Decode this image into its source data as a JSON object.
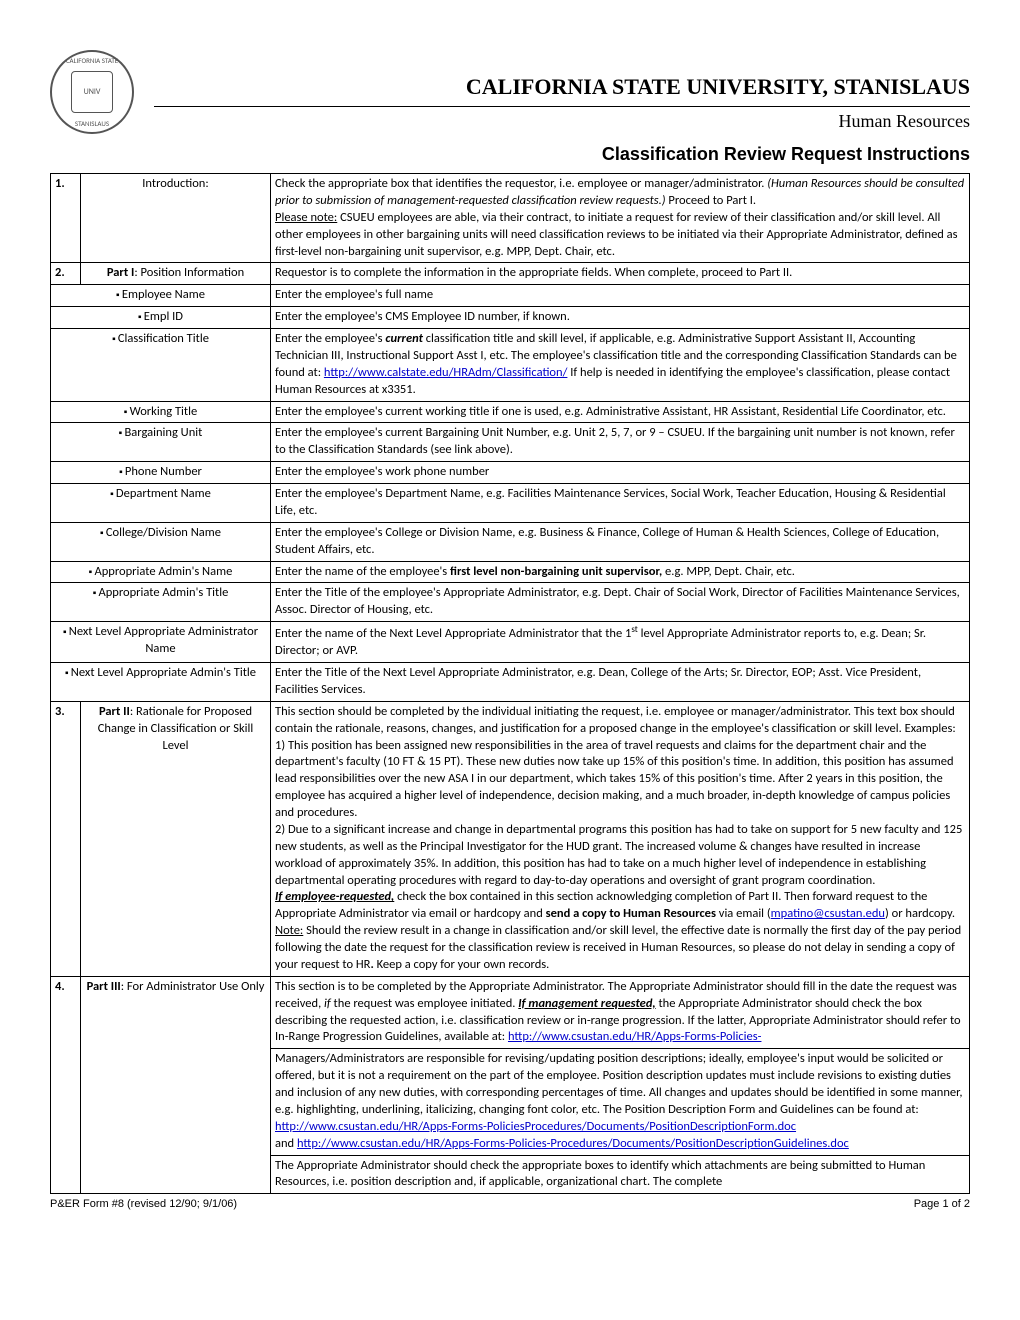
{
  "header": {
    "seal_top": "CALIFORNIA STATE",
    "seal_bottom": "STANISLAUS",
    "seal_inner": "UNIV",
    "university": "CALIFORNIA STATE UNIVERSITY, STANISLAUS",
    "department": "Human Resources",
    "doc_title": "Classification Review Request Instructions"
  },
  "rows": [
    {
      "num": "1.",
      "label": "Introduction:",
      "content": "Check the appropriate box that identifies the requestor, i.e. employee or manager/administrator.  <i>(Human Resources should be consulted prior to submission of management-requested classification review requests.)</i>  Proceed to Part I.<br><span class='und'>Please note:</span> CSUEU employees are able, via their contract, to initiate a request for review of their classification and/or skill level.   All other employees in other bargaining units will need classification reviews to be initiated via their Appropriate Administrator, defined as first-level non-bargaining unit supervisor, e.g. MPP, Dept. Chair, etc."
    },
    {
      "num": "2.",
      "label_html": "<b>Part I</b>: Position Information",
      "content": "Requestor is to complete the information in the appropriate fields.  When complete, proceed to Part II."
    },
    {
      "sub": true,
      "label": "Employee Name",
      "content": "Enter the employee's full name"
    },
    {
      "sub": true,
      "label": "Empl ID",
      "content": "Enter the employee's CMS Employee ID number, if known."
    },
    {
      "sub": true,
      "label": "Classification Title",
      "content": "Enter the employee's <b><i>current</i></b> classification title and skill level, if applicable, e.g. Administrative Support Assistant II, Accounting Technician III, Instructional Support Asst I, etc.  The employee's classification title and the corresponding Classification Standards can be found at: <a data-name='classification-link' data-interactable='true'>http://www.calstate.edu/HRAdm/Classification/</a>  If help is needed in identifying the employee's classification, please contact Human Resources at x3351."
    },
    {
      "sub": true,
      "label": "Working Title",
      "content": "Enter the employee's current working title if one is used, e.g. Administrative Assistant, HR Assistant, Residential Life Coordinator, etc."
    },
    {
      "sub": true,
      "label": "Bargaining Unit",
      "content": "Enter the employee's current Bargaining Unit Number, e.g. Unit 2, 5, 7, or 9 – CSUEU.  If the bargaining unit number is not known, refer to the Classification Standards (see link above)."
    },
    {
      "sub": true,
      "label": "Phone Number",
      "content": "Enter the employee's work phone number"
    },
    {
      "sub": true,
      "label": "Department Name",
      "content": "Enter the employee's Department Name, e.g. Facilities Maintenance Services, Social Work, Teacher Education, Housing & Residential Life, etc."
    },
    {
      "sub": true,
      "label": "College/Division Name",
      "content": "Enter the employee's College or Division Name, e.g. Business & Finance, College of Human & Health Sciences, College of Education, Student Affairs, etc."
    },
    {
      "sub": true,
      "label": "Appropriate Admin's Name",
      "content": "Enter the name of the employee's <b>first level non-bargaining unit supervisor,</b> e.g. MPP, Dept. Chair, etc."
    },
    {
      "sub": true,
      "label": "Appropriate Admin's Title",
      "content": "Enter the Title of the employee's Appropriate Administrator, e.g. Dept. Chair of Social Work, Director of Facilities Maintenance Services, Assoc. Director of Housing, etc."
    },
    {
      "sub": true,
      "label": "Next Level Appropriate Administrator Name",
      "content": "Enter the name of the Next Level Appropriate Administrator that the 1<sup>st</sup> level Appropriate Administrator reports to, e.g. Dean; Sr. Director; or AVP."
    },
    {
      "sub": true,
      "label": "Next Level Appropriate Admin's Title",
      "content": "Enter the Title of the Next Level Appropriate Administrator, e.g. Dean, College of the Arts; Sr. Director, EOP; Asst. Vice President, Facilities Services."
    },
    {
      "num": "3.",
      "label_html": "<b>Part II</b>: Rationale for Proposed Change in Classification or Skill Level",
      "content": "This section should be completed by the individual initiating the request, i.e. employee or manager/administrator.  This text box should contain the rationale, reasons, changes, and justification for a proposed change in the employee's classification or skill level.  Examples:<br>1)  This position has been assigned new responsibilities in the area of travel requests and claims for the department chair and the department's faculty (10 FT & 15 PT).  These new duties now take up 15% of this position's time.  In addition, this position has assumed lead responsibilities over the new ASA I in our department, which takes 15% of this position's time.  After 2 years in this position, the employee has acquired a higher level of independence, decision making, and a much broader, in-depth knowledge of campus policies and procedures.<br>2)  Due to a significant increase and change in departmental programs this position has had to take on support for 5 new faculty and 125 new students, as well as the Principal Investigator for the HUD grant.  The increased volume & changes have resulted in increase workload of approximately 35%.  In addition, this position has had to take on a much higher level of independence in establishing departmental operating procedures with regard to day-to-day operations and oversight of grant program coordination.<br><b><i><span class='und'>If employee-requested,</span></i></b> check the box contained in this section acknowledging completion of Part II.  Then forward request to the Appropriate Administrator via email or hardcopy and <b>send a copy to Human Resources</b> via email (<a data-name='email-link' data-interactable='true'>mpatino@csustan.edu</a>) or hardcopy.  <span class='und'>Note:</span> Should the review result in a change in classification and/or skill level, the effective date is normally the first day of the pay period following the date the request for the classification review is received in Human Resources, so please do not delay in sending a copy of your request to HR<b>.</b>  Keep a copy for your own records."
    },
    {
      "num": "4.",
      "label_html": "<b>Part III</b>: For Administrator Use Only",
      "content": "This section is to be completed by the Appropriate Administrator.  The Appropriate Administrator should fill in the date the request was received, <i>if</i> the request was employee initiated.  <b><i><span class='und'>If management requested,</span></i></b> the Appropriate Administrator should check the box describing the requested action, i.e. classification review or in-range progression.  If the latter, Appropriate Administrator should refer to In-Range Progression Guidelines, available at:   <a data-name='inrange-link' data-interactable='true'>http://www.csustan.edu/HR/Apps-Forms-Policies-</a>",
      "extra": [
        "Managers/Administrators are responsible for revising/updating position descriptions; ideally, employee's input would be solicited or offered, but it is not a requirement on the part of the employee.  Position description updates must include revisions to existing duties and inclusion of any new duties, with corresponding percentages of time.  All changes and updates should be identified in some manner, e.g. highlighting, underlining, italicizing, changing font color, etc.  The Position Description Form and Guidelines can be found at:  <a data-name='posdesc-form-link' data-interactable='true'>http://www.csustan.edu/HR/Apps-Forms-PoliciesProcedures/Documents/PositionDescriptionForm.doc</a><br>and <a data-name='posdesc-guide-link' data-interactable='true'>http://www.csustan.edu/HR/Apps-Forms-Policies-Procedures/Documents/PositionDescriptionGuidelines.doc</a>",
        "The Appropriate Administrator should check the appropriate boxes to identify which attachments are being submitted to Human Resources, i.e. position description and, if applicable, organizational chart.  The complete"
      ]
    }
  ],
  "footer": {
    "left": "P&ER Form #8 (revised 12/90; 9/1/06)",
    "right": "Page 1 of 2"
  }
}
